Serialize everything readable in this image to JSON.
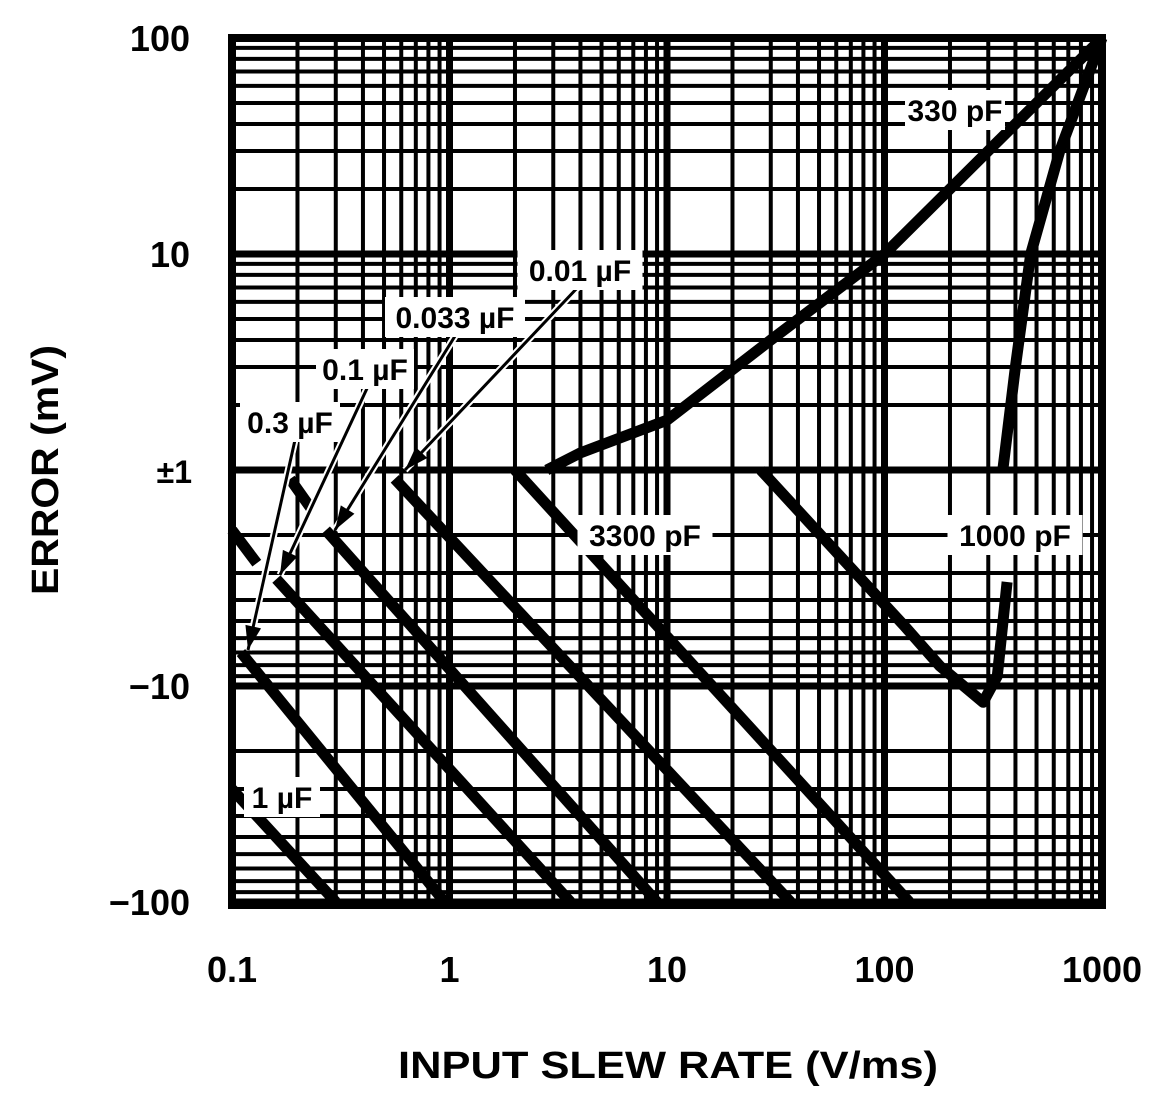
{
  "chart_data": {
    "type": "line",
    "title": "",
    "xlabel": "INPUT SLEW RATE (V/ms)",
    "ylabel": "ERROR (mV)",
    "x_scale": "log",
    "y_scale": "symmetric-log",
    "xlim": [
      0.1,
      1000
    ],
    "ylim": [
      -100,
      100
    ],
    "grid": true,
    "x_ticks": [
      {
        "value": 0.1,
        "label": "0.1"
      },
      {
        "value": 1,
        "label": "1"
      },
      {
        "value": 10,
        "label": "10"
      },
      {
        "value": 100,
        "label": "100"
      },
      {
        "value": 1000,
        "label": "1000"
      }
    ],
    "y_ticks": [
      {
        "value": 100,
        "label": "100"
      },
      {
        "value": 10,
        "label": "10"
      },
      {
        "value": 1,
        "label": "±1"
      },
      {
        "value": -10,
        "label": "−10"
      },
      {
        "value": -100,
        "label": "−100"
      }
    ],
    "series": [
      {
        "name": "1 µF",
        "points": [
          [
            0.1,
            -30
          ],
          [
            0.3,
            -100
          ]
        ]
      },
      {
        "name": "0.3 µF",
        "points": [
          [
            0.11,
            -7
          ],
          [
            0.95,
            -100
          ]
        ]
      },
      {
        "name": "0.1 µF",
        "points": [
          [
            0.16,
            -3.2
          ],
          [
            3.6,
            -100
          ]
        ],
        "dashed_extension": [
          [
            0.1,
            -1.9
          ],
          [
            0.13,
            -2.7
          ]
        ]
      },
      {
        "name": "0.033 µF",
        "points": [
          [
            0.27,
            -1.9
          ],
          [
            9,
            -100
          ]
        ],
        "dashed_extension": [
          [
            0.185,
            -1.1
          ],
          [
            0.23,
            -1.5
          ]
        ]
      },
      {
        "name": "0.01 µF",
        "points": [
          [
            0.56,
            -1.1
          ],
          [
            37,
            -100
          ]
        ]
      },
      {
        "name": "3300 pF",
        "points": [
          [
            2,
            -1
          ],
          [
            130,
            -100
          ]
        ]
      },
      {
        "name": "1000 pF",
        "points": [
          [
            27,
            -1
          ],
          [
            124,
            -5.3
          ],
          [
            180,
            -8.1
          ],
          [
            284,
            -11.9
          ],
          [
            330,
            -9
          ],
          [
            366,
            -3.3
          ]
        ],
        "upper_branch": [
          [
            350,
            1
          ],
          [
            400,
            3
          ],
          [
            470,
            10
          ],
          [
            640,
            30
          ],
          [
            1000,
            100
          ]
        ]
      },
      {
        "name": "330 pF",
        "points": [
          [
            2.8,
            1
          ],
          [
            4,
            1.2
          ],
          [
            10,
            1.7
          ],
          [
            30,
            4
          ],
          [
            100,
            10
          ],
          [
            300,
            30
          ],
          [
            1000,
            100
          ]
        ]
      }
    ],
    "annotations": [
      "0.01 µF",
      "0.033 µF",
      "0.1 µF",
      "0.3 µF",
      "1 µF",
      "3300 pF",
      "1000 pF",
      "330 pF"
    ],
    "colors": {
      "line": "#000000",
      "background": "#ffffff"
    }
  }
}
